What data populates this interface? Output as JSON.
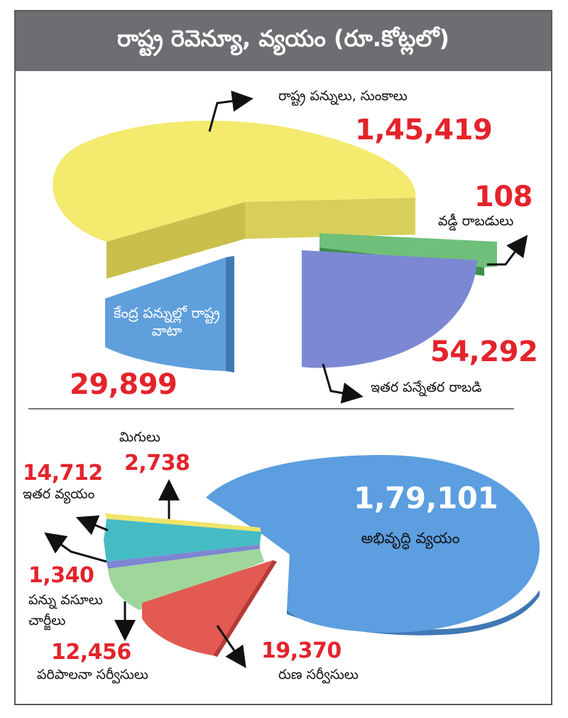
{
  "title": "రాష్ట్ర రెవెన్యూ, వ్యయం (రూ.కోట్లలో)",
  "chart_data": [
    {
      "type": "pie",
      "categories": [
        "రాష్ట్ర పన్నులు, సుంకాలు",
        "వడ్డీ రాబడులు",
        "ఇతర పన్నేతర రాబడి",
        "కేంద్ర పన్నుల్లో రాష్ట్ర వాటా"
      ],
      "values": [
        145419,
        108,
        54292,
        29899
      ],
      "value_labels": [
        "1,45,419",
        "108",
        "54,292",
        "29,899"
      ],
      "colors": [
        "#f3ea6e",
        "#6fbf7a",
        "#7c88d4",
        "#5f9fdc"
      ]
    },
    {
      "type": "pie",
      "categories": [
        "అభివృద్ధి వ్యయం",
        "మిగులు",
        "ఇతర వ్యయం",
        "పన్ను వసూలు చార్జీలు",
        "పరిపాలనా సర్వీసులు",
        "రుణ సర్వీసులు"
      ],
      "values": [
        179101,
        2738,
        14712,
        1340,
        12456,
        19370
      ],
      "value_labels": [
        "1,79,101",
        "2,738",
        "14,712",
        "1,340",
        "12,456",
        "19,370"
      ],
      "colors": [
        "#5c9ee0",
        "#f1e46a",
        "#45bcc4",
        "#7d86d2",
        "#9fd69a",
        "#e25a52"
      ]
    }
  ]
}
